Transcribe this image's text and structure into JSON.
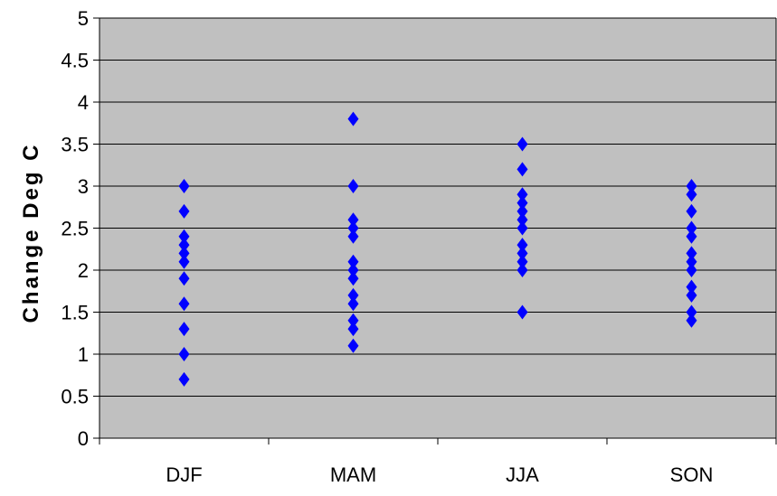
{
  "chart_data": {
    "type": "scatter",
    "title": "",
    "xlabel": "",
    "ylabel": "Change Deg C",
    "categories": [
      "DJF",
      "MAM",
      "JJA",
      "SON"
    ],
    "ylim": [
      0,
      5
    ],
    "yticks": [
      "0",
      "0.5",
      "1",
      "1.5",
      "2",
      "2.5",
      "3",
      "3.5",
      "4",
      "4.5",
      "5"
    ],
    "grid": true,
    "legend": "none",
    "marker": "diamond",
    "background_color": "#c0c0c0",
    "marker_color": "#0000ff",
    "series": [
      {
        "category": "DJF",
        "values": [
          3.0,
          2.7,
          2.4,
          2.3,
          2.2,
          2.1,
          1.9,
          1.6,
          1.3,
          1.0,
          0.7
        ]
      },
      {
        "category": "MAM",
        "values": [
          3.8,
          3.0,
          2.6,
          2.5,
          2.4,
          2.1,
          2.0,
          1.9,
          1.7,
          1.6,
          1.4,
          1.3,
          1.1
        ]
      },
      {
        "category": "JJA",
        "values": [
          3.5,
          3.2,
          2.9,
          2.8,
          2.7,
          2.6,
          2.5,
          2.3,
          2.2,
          2.1,
          2.0,
          1.5
        ]
      },
      {
        "category": "SON",
        "values": [
          3.0,
          2.9,
          2.7,
          2.5,
          2.4,
          2.2,
          2.1,
          2.0,
          1.8,
          1.7,
          1.5,
          1.4
        ]
      }
    ]
  }
}
